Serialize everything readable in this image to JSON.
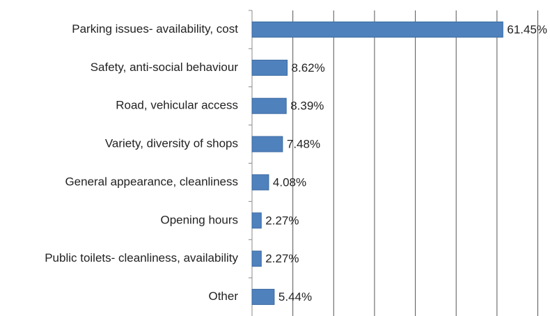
{
  "chart_data": {
    "type": "hbar",
    "categories": [
      "Parking issues- availability, cost",
      "Safety, anti-social behaviour",
      "Road, vehicular access",
      "Variety, diversity of shops",
      "General appearance, cleanliness",
      "Opening hours",
      "Public toilets- cleanliness, availability",
      "Other"
    ],
    "values": [
      61.45,
      8.62,
      8.39,
      7.48,
      4.08,
      2.27,
      2.27,
      5.44
    ],
    "value_labels": [
      "61.45%",
      "8.62%",
      "8.39%",
      "7.48%",
      "4.08%",
      "2.27%",
      "2.27%",
      "5.44%"
    ],
    "color": "#4f81bd",
    "xlim": [
      0,
      70
    ],
    "xticks": [
      0,
      10,
      20,
      30,
      40,
      50,
      60,
      70
    ],
    "grid": true
  }
}
